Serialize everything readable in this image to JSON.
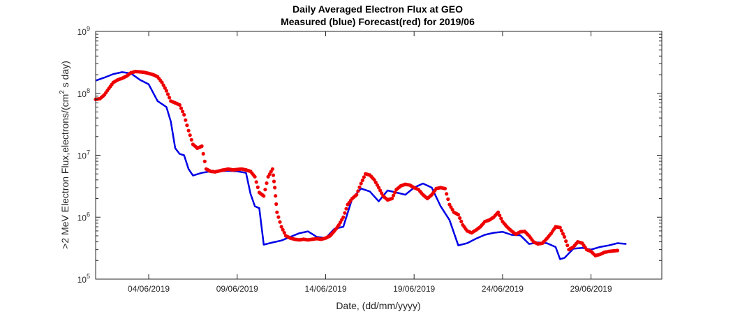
{
  "chart_data": {
    "type": "line",
    "title": "Daily Averaged Electron Flux at GEO",
    "subtitle": "Measured (blue) Forecast(red) for 2019/06",
    "xlabel": "Date, (dd/mm/yyyy)",
    "ylabel": ">2 MeV Electron Flux,electrons/(cm",
    "ylabel_sup": "2",
    "ylabel_tail": " s day)",
    "yscale": "log",
    "xlim": [
      "2019-06-01",
      "2019-07-03"
    ],
    "ylim": [
      100000,
      1000000000
    ],
    "y_ticks": [
      {
        "value": 100000,
        "base": "10",
        "exp": "5"
      },
      {
        "value": 1000000,
        "base": "10",
        "exp": "6"
      },
      {
        "value": 10000000,
        "base": "10",
        "exp": "7"
      },
      {
        "value": 100000000,
        "base": "10",
        "exp": "8"
      },
      {
        "value": 1000000000,
        "base": "10",
        "exp": "9"
      }
    ],
    "x_ticks": [
      {
        "date": "2019-06-04",
        "label": "04/06/2019"
      },
      {
        "date": "2019-06-09",
        "label": "09/06/2019"
      },
      {
        "date": "2019-06-14",
        "label": "14/06/2019"
      },
      {
        "date": "2019-06-19",
        "label": "19/06/2019"
      },
      {
        "date": "2019-06-24",
        "label": "24/06/2019"
      },
      {
        "date": "2019-06-29",
        "label": "29/06/2019"
      }
    ],
    "grid": false,
    "series": [
      {
        "color": "#0000e6",
        "style": "line",
        "points": [
          [
            "2019-06-01T00:00",
            160000000
          ],
          [
            "2019-06-01T12:00",
            180000000
          ],
          [
            "2019-06-02T00:00",
            205000000
          ],
          [
            "2019-06-02T12:00",
            220000000
          ],
          [
            "2019-06-03T00:00",
            210000000
          ],
          [
            "2019-06-03T12:00",
            165000000
          ],
          [
            "2019-06-04T00:00",
            140000000
          ],
          [
            "2019-06-04T12:00",
            75000000
          ],
          [
            "2019-06-05T00:00",
            60000000
          ],
          [
            "2019-06-05T06:00",
            35000000
          ],
          [
            "2019-06-05T12:00",
            13000000
          ],
          [
            "2019-06-05T18:00",
            10500000
          ],
          [
            "2019-06-06T00:00",
            10000000
          ],
          [
            "2019-06-06T06:00",
            6000000
          ],
          [
            "2019-06-06T12:00",
            4700000
          ],
          [
            "2019-06-07T00:00",
            5200000
          ],
          [
            "2019-06-07T12:00",
            5500000
          ],
          [
            "2019-06-08T00:00",
            5500000
          ],
          [
            "2019-06-08T12:00",
            5600000
          ],
          [
            "2019-06-09T00:00",
            5500000
          ],
          [
            "2019-06-09T12:00",
            5200000
          ],
          [
            "2019-06-09T18:00",
            2400000
          ],
          [
            "2019-06-10T00:00",
            1500000
          ],
          [
            "2019-06-10T06:00",
            1400000
          ],
          [
            "2019-06-10T12:00",
            360000
          ],
          [
            "2019-06-11T00:00",
            390000
          ],
          [
            "2019-06-11T12:00",
            420000
          ],
          [
            "2019-06-12T00:00",
            480000
          ],
          [
            "2019-06-12T12:00",
            550000
          ],
          [
            "2019-06-13T00:00",
            590000
          ],
          [
            "2019-06-13T12:00",
            480000
          ],
          [
            "2019-06-14T00:00",
            460000
          ],
          [
            "2019-06-14T12:00",
            650000
          ],
          [
            "2019-06-15T00:00",
            700000
          ],
          [
            "2019-06-15T12:00",
            2000000
          ],
          [
            "2019-06-16T00:00",
            2900000
          ],
          [
            "2019-06-16T12:00",
            2600000
          ],
          [
            "2019-06-17T00:00",
            1800000
          ],
          [
            "2019-06-17T12:00",
            2700000
          ],
          [
            "2019-06-18T00:00",
            2500000
          ],
          [
            "2019-06-18T12:00",
            2300000
          ],
          [
            "2019-06-19T00:00",
            3000000
          ],
          [
            "2019-06-19T12:00",
            3500000
          ],
          [
            "2019-06-20T00:00",
            3000000
          ],
          [
            "2019-06-20T12:00",
            1500000
          ],
          [
            "2019-06-21T00:00",
            900000
          ],
          [
            "2019-06-21T12:00",
            350000
          ],
          [
            "2019-06-22T00:00",
            380000
          ],
          [
            "2019-06-22T12:00",
            450000
          ],
          [
            "2019-06-23T00:00",
            520000
          ],
          [
            "2019-06-23T12:00",
            560000
          ],
          [
            "2019-06-24T00:00",
            580000
          ],
          [
            "2019-06-24T12:00",
            520000
          ],
          [
            "2019-06-25T00:00",
            510000
          ],
          [
            "2019-06-25T12:00",
            370000
          ],
          [
            "2019-06-26T00:00",
            390000
          ],
          [
            "2019-06-26T12:00",
            380000
          ],
          [
            "2019-06-27T00:00",
            330000
          ],
          [
            "2019-06-27T06:00",
            210000
          ],
          [
            "2019-06-27T12:00",
            220000
          ],
          [
            "2019-06-28T00:00",
            310000
          ],
          [
            "2019-06-28T12:00",
            320000
          ],
          [
            "2019-06-29T00:00",
            300000
          ],
          [
            "2019-06-29T12:00",
            330000
          ],
          [
            "2019-06-30T00:00",
            350000
          ],
          [
            "2019-06-30T12:00",
            380000
          ],
          [
            "2019-07-01T00:00",
            370000
          ]
        ]
      },
      {
        "color": "#ee0000",
        "style": "markers",
        "points": [
          [
            "2019-06-01T00:00",
            80000000
          ],
          [
            "2019-06-01T06:00",
            82000000
          ],
          [
            "2019-06-01T12:00",
            95000000
          ],
          [
            "2019-06-01T18:00",
            120000000
          ],
          [
            "2019-06-02T00:00",
            150000000
          ],
          [
            "2019-06-02T06:00",
            165000000
          ],
          [
            "2019-06-02T12:00",
            175000000
          ],
          [
            "2019-06-02T18:00",
            190000000
          ],
          [
            "2019-06-03T00:00",
            215000000
          ],
          [
            "2019-06-03T06:00",
            225000000
          ],
          [
            "2019-06-03T12:00",
            222000000
          ],
          [
            "2019-06-03T18:00",
            218000000
          ],
          [
            "2019-06-04T00:00",
            210000000
          ],
          [
            "2019-06-04T06:00",
            200000000
          ],
          [
            "2019-06-04T12:00",
            185000000
          ],
          [
            "2019-06-04T18:00",
            150000000
          ],
          [
            "2019-06-05T00:00",
            110000000
          ],
          [
            "2019-06-05T06:00",
            75000000
          ],
          [
            "2019-06-05T12:00",
            70000000
          ],
          [
            "2019-06-05T18:00",
            65000000
          ],
          [
            "2019-06-06T00:00",
            45000000
          ],
          [
            "2019-06-06T06:00",
            25000000
          ],
          [
            "2019-06-06T12:00",
            15000000
          ],
          [
            "2019-06-06T18:00",
            13000000
          ],
          [
            "2019-06-07T00:00",
            14000000
          ],
          [
            "2019-06-07T06:00",
            6000000
          ],
          [
            "2019-06-07T12:00",
            5500000
          ],
          [
            "2019-06-07T18:00",
            5400000
          ],
          [
            "2019-06-08T00:00",
            5600000
          ],
          [
            "2019-06-08T06:00",
            5800000
          ],
          [
            "2019-06-08T12:00",
            6000000
          ],
          [
            "2019-06-08T18:00",
            5800000
          ],
          [
            "2019-06-09T00:00",
            5900000
          ],
          [
            "2019-06-09T06:00",
            6000000
          ],
          [
            "2019-06-09T12:00",
            5800000
          ],
          [
            "2019-06-09T18:00",
            5500000
          ],
          [
            "2019-06-10T00:00",
            4500000
          ],
          [
            "2019-06-10T06:00",
            2500000
          ],
          [
            "2019-06-10T12:00",
            2200000
          ],
          [
            "2019-06-10T18:00",
            4500000
          ],
          [
            "2019-06-11T00:00",
            6000000
          ],
          [
            "2019-06-11T03:00",
            3000000
          ],
          [
            "2019-06-11T06:00",
            1200000
          ],
          [
            "2019-06-11T12:00",
            700000
          ],
          [
            "2019-06-11T18:00",
            500000
          ],
          [
            "2019-06-12T00:00",
            460000
          ],
          [
            "2019-06-12T06:00",
            440000
          ],
          [
            "2019-06-12T12:00",
            430000
          ],
          [
            "2019-06-12T18:00",
            440000
          ],
          [
            "2019-06-13T00:00",
            430000
          ],
          [
            "2019-06-13T06:00",
            440000
          ],
          [
            "2019-06-13T12:00",
            450000
          ],
          [
            "2019-06-13T18:00",
            440000
          ],
          [
            "2019-06-14T00:00",
            460000
          ],
          [
            "2019-06-14T06:00",
            500000
          ],
          [
            "2019-06-14T12:00",
            600000
          ],
          [
            "2019-06-14T18:00",
            750000
          ],
          [
            "2019-06-15T00:00",
            1000000
          ],
          [
            "2019-06-15T06:00",
            1600000
          ],
          [
            "2019-06-15T12:00",
            2000000
          ],
          [
            "2019-06-15T18:00",
            2300000
          ],
          [
            "2019-06-16T00:00",
            3500000
          ],
          [
            "2019-06-16T06:00",
            5000000
          ],
          [
            "2019-06-16T12:00",
            4800000
          ],
          [
            "2019-06-16T18:00",
            4000000
          ],
          [
            "2019-06-17T00:00",
            3000000
          ],
          [
            "2019-06-17T06:00",
            2200000
          ],
          [
            "2019-06-17T12:00",
            1900000
          ],
          [
            "2019-06-17T18:00",
            2000000
          ],
          [
            "2019-06-18T00:00",
            2800000
          ],
          [
            "2019-06-18T06:00",
            3200000
          ],
          [
            "2019-06-18T12:00",
            3400000
          ],
          [
            "2019-06-18T18:00",
            3300000
          ],
          [
            "2019-06-19T00:00",
            3000000
          ],
          [
            "2019-06-19T06:00",
            2800000
          ],
          [
            "2019-06-19T12:00",
            2300000
          ],
          [
            "2019-06-19T18:00",
            2000000
          ],
          [
            "2019-06-20T00:00",
            2300000
          ],
          [
            "2019-06-20T06:00",
            2900000
          ],
          [
            "2019-06-20T12:00",
            3000000
          ],
          [
            "2019-06-20T18:00",
            2900000
          ],
          [
            "2019-06-21T00:00",
            1600000
          ],
          [
            "2019-06-21T06:00",
            1200000
          ],
          [
            "2019-06-21T12:00",
            1100000
          ],
          [
            "2019-06-21T18:00",
            750000
          ],
          [
            "2019-06-22T00:00",
            600000
          ],
          [
            "2019-06-22T06:00",
            560000
          ],
          [
            "2019-06-22T12:00",
            620000
          ],
          [
            "2019-06-22T18:00",
            700000
          ],
          [
            "2019-06-23T00:00",
            850000
          ],
          [
            "2019-06-23T06:00",
            900000
          ],
          [
            "2019-06-23T12:00",
            1000000
          ],
          [
            "2019-06-23T18:00",
            1200000
          ],
          [
            "2019-06-24T00:00",
            850000
          ],
          [
            "2019-06-24T06:00",
            700000
          ],
          [
            "2019-06-24T12:00",
            600000
          ],
          [
            "2019-06-24T18:00",
            530000
          ],
          [
            "2019-06-25T00:00",
            580000
          ],
          [
            "2019-06-25T06:00",
            590000
          ],
          [
            "2019-06-25T12:00",
            500000
          ],
          [
            "2019-06-25T18:00",
            400000
          ],
          [
            "2019-06-26T00:00",
            370000
          ],
          [
            "2019-06-26T06:00",
            380000
          ],
          [
            "2019-06-26T12:00",
            450000
          ],
          [
            "2019-06-26T18:00",
            550000
          ],
          [
            "2019-06-27T00:00",
            700000
          ],
          [
            "2019-06-27T06:00",
            680000
          ],
          [
            "2019-06-27T12:00",
            480000
          ],
          [
            "2019-06-27T18:00",
            300000
          ],
          [
            "2019-06-28T00:00",
            330000
          ],
          [
            "2019-06-28T06:00",
            400000
          ],
          [
            "2019-06-28T12:00",
            380000
          ],
          [
            "2019-06-28T18:00",
            300000
          ],
          [
            "2019-06-29T00:00",
            280000
          ],
          [
            "2019-06-29T06:00",
            240000
          ],
          [
            "2019-06-29T12:00",
            250000
          ],
          [
            "2019-06-29T18:00",
            270000
          ],
          [
            "2019-06-30T00:00",
            280000
          ],
          [
            "2019-06-30T06:00",
            285000
          ],
          [
            "2019-06-30T12:00",
            290000
          ]
        ]
      }
    ]
  }
}
